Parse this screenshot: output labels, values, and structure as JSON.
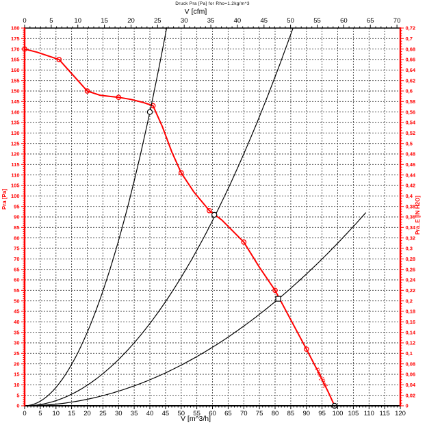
{
  "chart_data": {
    "type": "line",
    "title": "Druck Pra [Pa] for Rho=1.2kg/m^3",
    "background": "#ffffff",
    "accent_color": "#ff0000",
    "axes": {
      "top": {
        "label": "V [cfm]",
        "min": 0,
        "max": 70.63,
        "tick_step": 5,
        "minor_step": 1,
        "color": "#000000",
        "tick_labels": [
          "0",
          "5",
          "10",
          "15",
          "20",
          "25",
          "30",
          "35",
          "40",
          "45",
          "50",
          "55",
          "60",
          "65",
          "70"
        ]
      },
      "bottom": {
        "label": "V [m^3/h]",
        "min": 0,
        "max": 120,
        "tick_step": 5,
        "minor_step": 1,
        "color": "#000000",
        "tick_labels": [
          "0",
          "5",
          "10",
          "15",
          "20",
          "25",
          "30",
          "35",
          "40",
          "45",
          "50",
          "55",
          "60",
          "65",
          "70",
          "75",
          "80",
          "85",
          "90",
          "95",
          "100",
          "105",
          "110",
          "115",
          "120"
        ]
      },
      "left": {
        "label": "Pra [Pa]",
        "min": 0,
        "max": 180,
        "tick_step": 5,
        "minor_step": 1,
        "color": "#ff0000",
        "tick_labels": [
          "0",
          "5",
          "10",
          "15",
          "20",
          "25",
          "30",
          "35",
          "40",
          "45",
          "50",
          "55",
          "60",
          "65",
          "70",
          "75",
          "80",
          "85",
          "90",
          "95",
          "100",
          "105",
          "110",
          "115",
          "120",
          "125",
          "130",
          "135",
          "140",
          "145",
          "150",
          "155",
          "160",
          "165",
          "170",
          "175",
          "180"
        ]
      },
      "right": {
        "label": "Pra_E [IN H2O]",
        "min": 0,
        "max": 0.72,
        "tick_step": 0.02,
        "minor_step": 0.005,
        "color": "#ff0000",
        "tick_labels": [
          "0",
          "0,02",
          "0,04",
          "0,06",
          "0,08",
          "0,1",
          "0,12",
          "0,14",
          "0,16",
          "0,18",
          "0,2",
          "0,22",
          "0,24",
          "0,26",
          "0,28",
          "0,3",
          "0,32",
          "0,34",
          "0,36",
          "0,38",
          "0,4",
          "0,42",
          "0,44",
          "0,46",
          "0,48",
          "0,5",
          "0,52",
          "0,54",
          "0,56",
          "0,58",
          "0,6",
          "0,62",
          "0,64",
          "0,66",
          "0,68",
          "0,7",
          "0,72"
        ]
      }
    },
    "grid": {
      "on": true,
      "x_step": 5,
      "y_step": 5,
      "color": "#404040",
      "dash": "2 2"
    },
    "series": [
      {
        "name": "fan-pressure-curve",
        "type": "line",
        "color": "#ff0000",
        "width": 2,
        "on_curve_label": "Pra [Pa]",
        "data_points": [
          [
            0,
            170
          ],
          [
            11,
            165
          ],
          [
            20,
            150
          ],
          [
            30,
            147
          ],
          [
            41,
            143
          ],
          [
            50,
            111
          ],
          [
            59,
            93
          ],
          [
            70,
            78
          ],
          [
            80,
            55
          ],
          [
            90,
            27
          ]
        ],
        "path_points": [
          [
            0,
            170
          ],
          [
            4,
            168.5
          ],
          [
            8,
            166.5
          ],
          [
            11,
            165
          ],
          [
            14,
            160
          ],
          [
            17,
            155
          ],
          [
            20,
            150
          ],
          [
            24,
            148
          ],
          [
            27,
            147.5
          ],
          [
            30,
            147
          ],
          [
            34,
            146
          ],
          [
            38,
            144.5
          ],
          [
            41,
            143
          ],
          [
            44,
            133
          ],
          [
            47,
            121
          ],
          [
            50,
            111
          ],
          [
            54,
            102
          ],
          [
            59,
            93
          ],
          [
            63,
            88.5
          ],
          [
            66,
            84
          ],
          [
            70,
            78
          ],
          [
            75,
            66
          ],
          [
            80,
            55
          ],
          [
            85,
            41
          ],
          [
            90,
            27
          ],
          [
            94,
            15.5
          ],
          [
            97,
            6.5
          ],
          [
            99,
            0
          ]
        ]
      },
      {
        "name": "system-curve-steep",
        "type": "parabola",
        "color": "#000000",
        "width": 1.2,
        "k": 0.0875,
        "x_end": 45.4
      },
      {
        "name": "system-curve-middle",
        "type": "parabola",
        "color": "#000000",
        "width": 1.2,
        "k": 0.0245,
        "x_end": 85.7
      },
      {
        "name": "system-curve-shallow",
        "type": "parabola",
        "color": "#000000",
        "width": 1.2,
        "k": 0.00775,
        "x_end": 109
      }
    ],
    "operating_points": [
      {
        "x": 40,
        "y": 140,
        "marker": "circle"
      },
      {
        "x": 60.6,
        "y": 91,
        "marker": "circle"
      },
      {
        "x": 81,
        "y": 51,
        "marker": "square"
      },
      {
        "x": 99,
        "y": 0,
        "marker": "circle"
      }
    ]
  }
}
